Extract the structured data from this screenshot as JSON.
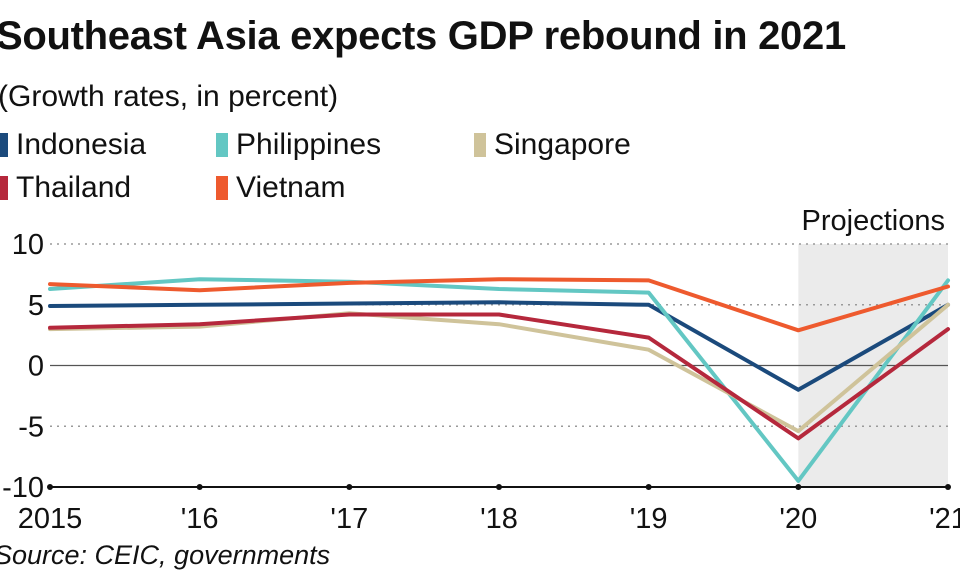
{
  "chart_data": {
    "type": "line",
    "title": "Southeast Asia expects GDP rebound in 2021",
    "subtitle": "(Growth rates, in percent)",
    "categories": [
      "2015",
      "'16",
      "'17",
      "'18",
      "'19",
      "'20",
      "'21"
    ],
    "ylim": [
      -10,
      10
    ],
    "yticks": [
      10,
      5,
      0,
      -5,
      -10
    ],
    "grid": true,
    "legend_position": "top-left",
    "annotation": "Projections",
    "projection_from": "'20",
    "series": [
      {
        "name": "Indonesia",
        "color": "#1b4a7c",
        "values": [
          4.9,
          5.0,
          5.1,
          5.2,
          5.0,
          -2.0,
          5.0
        ]
      },
      {
        "name": "Philippines",
        "color": "#63c7c3",
        "values": [
          6.3,
          7.1,
          6.9,
          6.3,
          6.0,
          -9.5,
          7.0
        ]
      },
      {
        "name": "Singapore",
        "color": "#cfc39a",
        "values": [
          3.0,
          3.2,
          4.3,
          3.4,
          1.3,
          -5.4,
          5.0
        ]
      },
      {
        "name": "Thailand",
        "color": "#b5283c",
        "values": [
          3.1,
          3.4,
          4.2,
          4.2,
          2.3,
          -6.0,
          3.0
        ]
      },
      {
        "name": "Vietnam",
        "color": "#ee5a2e",
        "values": [
          6.7,
          6.2,
          6.8,
          7.1,
          7.0,
          2.9,
          6.5
        ]
      }
    ],
    "source": "Source: CEIC, governments"
  }
}
